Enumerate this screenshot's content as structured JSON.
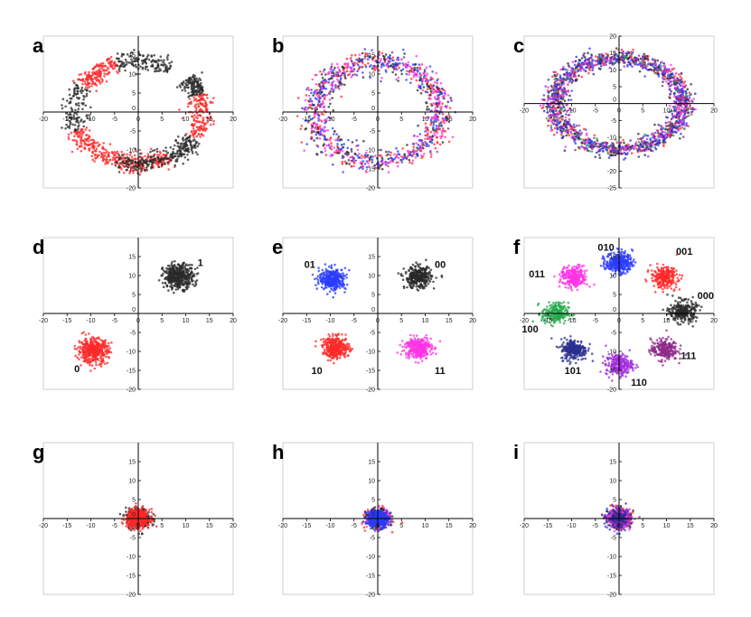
{
  "colors": {
    "red": "#ff2a2a",
    "black": "#2a2a2a",
    "blue": "#2a3cff",
    "magenta": "#ff33e6",
    "green": "#22a84a",
    "navy": "#2a2f8f",
    "violet": "#a12cdc",
    "purple": "#8e2a8a"
  },
  "chart_data": [
    {
      "panel": "a",
      "type": "scatter",
      "xlim": [
        -20,
        20
      ],
      "ylim": [
        -20,
        20
      ],
      "xticks": [
        -20,
        -15,
        -10,
        -5,
        0,
        5,
        10,
        15,
        20
      ],
      "yticks": [
        -20,
        -15,
        -10,
        -5,
        0,
        5,
        10,
        15
      ],
      "series": [
        {
          "color": "red",
          "shape": "ring-arcs",
          "radius": 13.5,
          "spread": 1.2,
          "arcs_deg": [
            [
              110,
              150
            ],
            [
              -30,
              20
            ],
            [
              200,
              250
            ],
            [
              -110,
              -60
            ]
          ],
          "n": 700
        },
        {
          "color": "black",
          "shape": "ring-arcs",
          "radius": 13.5,
          "spread": 1.2,
          "arcs_deg": [
            [
              60,
              110
            ],
            [
              150,
              200
            ],
            [
              20,
              40
            ],
            [
              250,
              300
            ],
            [
              -60,
              -30
            ]
          ],
          "n": 650
        }
      ],
      "labels": []
    },
    {
      "panel": "b",
      "type": "scatter",
      "xlim": [
        -20,
        20
      ],
      "ylim": [
        -20,
        20
      ],
      "xticks": [
        -20,
        -15,
        -10,
        -5,
        0,
        5,
        10,
        15,
        20
      ],
      "yticks": [
        -20,
        -15,
        -10,
        -5,
        0,
        5,
        10,
        15
      ],
      "series": [
        {
          "color": "red",
          "shape": "ring",
          "radius": 13.2,
          "spread": 1.5,
          "n": 300
        },
        {
          "color": "black",
          "shape": "ring",
          "radius": 13.2,
          "spread": 1.5,
          "n": 250
        },
        {
          "color": "blue",
          "shape": "ring",
          "radius": 13.2,
          "spread": 1.5,
          "n": 300
        },
        {
          "color": "magenta",
          "shape": "ring",
          "radius": 13.2,
          "spread": 1.5,
          "n": 250
        }
      ],
      "labels": []
    },
    {
      "panel": "c",
      "type": "scatter",
      "xlim": [
        -20,
        20
      ],
      "ylim": [
        -25,
        20
      ],
      "xticks": [
        -20,
        -15,
        -10,
        -5,
        0,
        5,
        10,
        15,
        20
      ],
      "yticks": [
        -25,
        -20,
        -15,
        -10,
        -5,
        0,
        5,
        10,
        15,
        20
      ],
      "series": [
        {
          "color": "red",
          "shape": "ring",
          "radius": 13.5,
          "spread": 1.2,
          "n": 320
        },
        {
          "color": "black",
          "shape": "ring",
          "radius": 13.5,
          "spread": 1.2,
          "n": 320
        },
        {
          "color": "blue",
          "shape": "ring",
          "radius": 13.5,
          "spread": 1.2,
          "n": 360
        },
        {
          "color": "magenta",
          "shape": "ring",
          "radius": 13.5,
          "spread": 1.2,
          "n": 220
        },
        {
          "color": "green",
          "shape": "ring",
          "radius": 13.5,
          "spread": 1.2,
          "n": 90
        },
        {
          "color": "navy",
          "shape": "ring",
          "radius": 13.5,
          "spread": 1.2,
          "n": 160
        },
        {
          "color": "violet",
          "shape": "ring",
          "radius": 13.5,
          "spread": 1.2,
          "n": 120
        },
        {
          "color": "purple",
          "shape": "ring",
          "radius": 13.5,
          "spread": 1.2,
          "n": 110
        }
      ],
      "labels": []
    },
    {
      "panel": "d",
      "type": "scatter",
      "xlim": [
        -20,
        20
      ],
      "ylim": [
        -20,
        20
      ],
      "xticks": [
        -20,
        -15,
        -10,
        -5,
        0,
        5,
        10,
        15,
        20
      ],
      "yticks": [
        -20,
        -15,
        -10,
        -5,
        0,
        5,
        10,
        15
      ],
      "series": [
        {
          "color": "black",
          "shape": "cluster",
          "center": [
            8.5,
            9.8
          ],
          "spread": 1.6,
          "n": 420
        },
        {
          "color": "red",
          "shape": "cluster",
          "center": [
            -9.5,
            -9.8
          ],
          "spread": 1.6,
          "n": 420
        }
      ],
      "labels": [
        {
          "text": "1",
          "x": 12.5,
          "y": 12.5
        },
        {
          "text": "0",
          "x": -13.5,
          "y": -15.5
        }
      ]
    },
    {
      "panel": "e",
      "type": "scatter",
      "xlim": [
        -20,
        20
      ],
      "ylim": [
        -20,
        20
      ],
      "xticks": [
        -20,
        -15,
        -10,
        -5,
        0,
        5,
        10,
        15,
        20
      ],
      "yticks": [
        -20,
        -15,
        -10,
        -5,
        0,
        5,
        10,
        15
      ],
      "series": [
        {
          "color": "blue",
          "shape": "cluster",
          "center": [
            -9.5,
            9.0
          ],
          "spread": 1.4,
          "n": 330
        },
        {
          "color": "black",
          "shape": "cluster",
          "center": [
            8.5,
            9.5
          ],
          "spread": 1.4,
          "n": 330
        },
        {
          "color": "red",
          "shape": "cluster",
          "center": [
            -8.8,
            -9.0
          ],
          "spread": 1.4,
          "n": 330
        },
        {
          "color": "magenta",
          "shape": "cluster",
          "center": [
            8.5,
            -9.0
          ],
          "spread": 1.4,
          "n": 330
        }
      ],
      "labels": [
        {
          "text": "01",
          "x": -15.5,
          "y": 12.0
        },
        {
          "text": "00",
          "x": 12.0,
          "y": 12.0
        },
        {
          "text": "10",
          "x": -14.0,
          "y": -16.0
        },
        {
          "text": "11",
          "x": 12.0,
          "y": -16.0
        }
      ]
    },
    {
      "panel": "f",
      "type": "scatter",
      "xlim": [
        -20,
        20
      ],
      "ylim": [
        -20,
        20
      ],
      "xticks": [
        -20,
        -15,
        -10,
        -5,
        0,
        5,
        10,
        15,
        20
      ],
      "yticks": [
        -20,
        -15,
        -10,
        -5,
        0,
        5,
        10,
        15
      ],
      "series": [
        {
          "color": "black",
          "shape": "cluster",
          "center": [
            13.5,
            0.5
          ],
          "spread": 1.4,
          "n": 260
        },
        {
          "color": "red",
          "shape": "cluster",
          "center": [
            9.5,
            9.5
          ],
          "spread": 1.4,
          "n": 260
        },
        {
          "color": "blue",
          "shape": "cluster",
          "center": [
            0.0,
            13.5
          ],
          "spread": 1.4,
          "n": 300
        },
        {
          "color": "magenta",
          "shape": "cluster",
          "center": [
            -9.5,
            9.5
          ],
          "spread": 1.4,
          "n": 260
        },
        {
          "color": "green",
          "shape": "cluster",
          "center": [
            -13.5,
            0.0
          ],
          "spread": 1.4,
          "n": 220
        },
        {
          "color": "navy",
          "shape": "cluster",
          "center": [
            -9.5,
            -9.5
          ],
          "spread": 1.4,
          "n": 260
        },
        {
          "color": "violet",
          "shape": "cluster",
          "center": [
            0.0,
            -13.5
          ],
          "spread": 1.4,
          "n": 240
        },
        {
          "color": "purple",
          "shape": "cluster",
          "center": [
            9.5,
            -9.5
          ],
          "spread": 1.4,
          "n": 240
        }
      ],
      "labels": [
        {
          "text": "000",
          "x": 16.5,
          "y": 3.8
        },
        {
          "text": "001",
          "x": 12.0,
          "y": 15.5
        },
        {
          "text": "010",
          "x": -4.5,
          "y": 16.5
        },
        {
          "text": "011",
          "x": -19.0,
          "y": 9.5
        },
        {
          "text": "100",
          "x": -20.5,
          "y": -5.0
        },
        {
          "text": "101",
          "x": -11.5,
          "y": -16.0
        },
        {
          "text": "110",
          "x": 2.5,
          "y": -19.0
        },
        {
          "text": "111",
          "x": 13.0,
          "y": -12.0
        }
      ]
    },
    {
      "panel": "g",
      "type": "scatter",
      "xlim": [
        -20,
        20
      ],
      "ylim": [
        -20,
        20
      ],
      "xticks": [
        -20,
        -15,
        -10,
        -5,
        0,
        5,
        10,
        15,
        20
      ],
      "yticks": [
        -20,
        -15,
        -10,
        -5,
        0,
        5,
        10,
        15
      ],
      "series": [
        {
          "color": "black",
          "shape": "cluster",
          "center": [
            0,
            0
          ],
          "spread": 1.3,
          "n": 300
        },
        {
          "color": "red",
          "shape": "cluster",
          "center": [
            0,
            0
          ],
          "spread": 1.2,
          "n": 420
        }
      ],
      "labels": []
    },
    {
      "panel": "h",
      "type": "scatter",
      "xlim": [
        -20,
        20
      ],
      "ylim": [
        -20,
        20
      ],
      "xticks": [
        -20,
        -15,
        -10,
        -5,
        0,
        5,
        10,
        15,
        20
      ],
      "yticks": [
        -20,
        -15,
        -10,
        -5,
        0,
        5,
        10,
        15
      ],
      "series": [
        {
          "color": "red",
          "shape": "cluster",
          "center": [
            0,
            0
          ],
          "spread": 1.2,
          "n": 200
        },
        {
          "color": "magenta",
          "shape": "cluster",
          "center": [
            0,
            0
          ],
          "spread": 1.2,
          "n": 200
        },
        {
          "color": "black",
          "shape": "cluster",
          "center": [
            0,
            0
          ],
          "spread": 1.2,
          "n": 150
        },
        {
          "color": "blue",
          "shape": "cluster",
          "center": [
            0,
            0
          ],
          "spread": 1.1,
          "n": 320
        }
      ],
      "labels": []
    },
    {
      "panel": "i",
      "type": "scatter",
      "xlim": [
        -20,
        20
      ],
      "ylim": [
        -20,
        20
      ],
      "xticks": [
        -20,
        -15,
        -10,
        -5,
        0,
        5,
        10,
        15,
        20
      ],
      "yticks": [
        -20,
        -15,
        -10,
        -5,
        0,
        5,
        10,
        15
      ],
      "series": [
        {
          "color": "red",
          "shape": "cluster",
          "center": [
            0,
            0
          ],
          "spread": 1.2,
          "n": 180
        },
        {
          "color": "blue",
          "shape": "cluster",
          "center": [
            0,
            0
          ],
          "spread": 1.2,
          "n": 220
        },
        {
          "color": "black",
          "shape": "cluster",
          "center": [
            0,
            0
          ],
          "spread": 1.2,
          "n": 120
        },
        {
          "color": "magenta",
          "shape": "cluster",
          "center": [
            0,
            0
          ],
          "spread": 1.2,
          "n": 150
        },
        {
          "color": "violet",
          "shape": "cluster",
          "center": [
            0,
            0
          ],
          "spread": 1.2,
          "n": 90
        },
        {
          "color": "navy",
          "shape": "cluster",
          "center": [
            0,
            0
          ],
          "spread": 1.2,
          "n": 90
        }
      ],
      "labels": []
    }
  ]
}
